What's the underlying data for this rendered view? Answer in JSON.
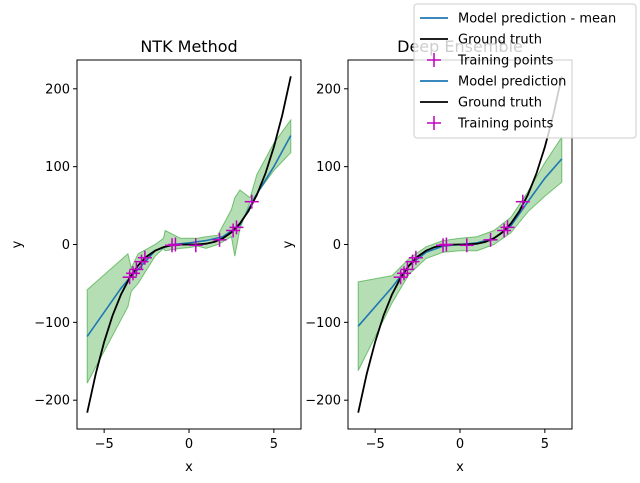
{
  "colors": {
    "mean": "#1f77b4",
    "truth": "#000000",
    "points": "#bf00bf",
    "band": "#2ca02c"
  },
  "legend": {
    "placement": "top-right",
    "entries": [
      {
        "label": "Model prediction - mean",
        "kind": "line",
        "color": "#1f77b4"
      },
      {
        "label": "Ground truth",
        "kind": "line",
        "color": "#000000"
      },
      {
        "label": "Training points",
        "kind": "marker",
        "color": "#bf00bf"
      },
      {
        "label": "Model prediction",
        "kind": "line",
        "color": "#1f77b4"
      },
      {
        "label": "Ground truth",
        "kind": "line",
        "color": "#000000"
      },
      {
        "label": "Training points",
        "kind": "marker",
        "color": "#bf00bf"
      }
    ]
  },
  "chart_data": [
    {
      "type": "line",
      "title": "NTK Method",
      "xlabel": "x",
      "ylabel": "y",
      "xlim": [
        -6.6,
        6.6
      ],
      "ylim": [
        -237,
        237
      ],
      "xticks": [
        -5,
        0,
        5
      ],
      "yticks": [
        -200,
        -100,
        0,
        100,
        200
      ],
      "grid": false,
      "series": [
        {
          "name": "Model prediction - mean",
          "x": [
            -6,
            -4,
            -3.5,
            -3,
            -2.5,
            -2,
            -1,
            0,
            1,
            2,
            3,
            4,
            5,
            6
          ],
          "y": [
            -118,
            -56,
            -43,
            -32,
            -20,
            -8,
            0,
            2,
            5,
            10,
            25,
            65,
            100,
            140
          ]
        },
        {
          "name": "Ground truth",
          "x": [
            -6,
            -5.5,
            -5,
            -4.5,
            -4,
            -3.5,
            -3,
            -2.5,
            -2,
            -1.5,
            -1,
            -0.5,
            0,
            0.5,
            1,
            1.5,
            2,
            2.5,
            3,
            3.5,
            4,
            4.5,
            5,
            5.5,
            6
          ],
          "y": [
            -216,
            -166.4,
            -125,
            -91.1,
            -64,
            -42.9,
            -27,
            -15.6,
            -8,
            -3.4,
            -1,
            -0.1,
            0,
            0.1,
            1,
            3.4,
            8,
            15.6,
            27,
            42.9,
            64,
            91.1,
            125,
            166.4,
            216
          ]
        },
        {
          "name": "Training points",
          "x": [
            -3.5,
            -3.3,
            -3.1,
            -2.8,
            -2.6,
            -1.0,
            -0.8,
            0.4,
            1.8,
            2.6,
            2.8,
            3.7
          ],
          "y": [
            -42,
            -37,
            -32,
            -22,
            -17,
            -1,
            0,
            -1,
            6,
            18,
            22,
            55
          ]
        },
        {
          "name": "Model prediction - band",
          "x": [
            -6,
            -3.6,
            -3.4,
            -3,
            -2,
            -1.5,
            -1.4,
            -0.5,
            0,
            0.5,
            1,
            1.7,
            2.5,
            2.7,
            3,
            3.6,
            4,
            5,
            6
          ],
          "upper": [
            -58,
            -12,
            -30,
            -12,
            0,
            8,
            18,
            8,
            8,
            8,
            10,
            12,
            45,
            60,
            70,
            60,
            90,
            130,
            160
          ],
          "lower": [
            -178,
            -80,
            -60,
            -50,
            -15,
            -5,
            -8,
            -5,
            -4,
            -2,
            -5,
            0,
            10,
            -15,
            20,
            55,
            65,
            95,
            118
          ]
        }
      ]
    },
    {
      "type": "line",
      "title": "Deep Ensemble",
      "xlabel": "x",
      "ylabel": "y",
      "xlim": [
        -6.6,
        6.6
      ],
      "ylim": [
        -237,
        237
      ],
      "xticks": [
        -5,
        0,
        5
      ],
      "yticks": [
        -200,
        -100,
        0,
        100,
        200
      ],
      "grid": false,
      "series": [
        {
          "name": "Model prediction",
          "x": [
            -6,
            -4,
            -3,
            -2,
            -1,
            0,
            1,
            2,
            3,
            4,
            5,
            6
          ],
          "y": [
            -105,
            -55,
            -27,
            -10,
            -2,
            0,
            2,
            8,
            24,
            55,
            85,
            110
          ]
        },
        {
          "name": "Ground truth",
          "x": [
            -6,
            -5.5,
            -5,
            -4.5,
            -4,
            -3.5,
            -3,
            -2.5,
            -2,
            -1.5,
            -1,
            -0.5,
            0,
            0.5,
            1,
            1.5,
            2,
            2.5,
            3,
            3.5,
            4,
            4.5,
            5,
            5.5,
            6
          ],
          "y": [
            -216,
            -166.4,
            -125,
            -91.1,
            -64,
            -42.9,
            -27,
            -15.6,
            -8,
            -3.4,
            -1,
            -0.1,
            0,
            0.1,
            1,
            3.4,
            8,
            15.6,
            27,
            42.9,
            64,
            91.1,
            125,
            166.4,
            216
          ]
        },
        {
          "name": "Training points",
          "x": [
            -3.5,
            -3.3,
            -3.1,
            -2.8,
            -2.6,
            -1.0,
            -0.8,
            0.4,
            1.8,
            2.6,
            2.8,
            3.7
          ],
          "y": [
            -42,
            -37,
            -32,
            -22,
            -17,
            -1,
            0,
            -1,
            6,
            18,
            22,
            55
          ]
        },
        {
          "name": "Model prediction - band",
          "x": [
            -6,
            -4,
            -3,
            -2,
            -1,
            0,
            1,
            2,
            3,
            4,
            5,
            6
          ],
          "upper": [
            -48,
            -40,
            -18,
            -3,
            5,
            8,
            10,
            18,
            35,
            68,
            105,
            138
          ],
          "lower": [
            -162,
            -75,
            -38,
            -18,
            -10,
            -8,
            -8,
            0,
            15,
            42,
            62,
            80
          ]
        }
      ]
    }
  ]
}
